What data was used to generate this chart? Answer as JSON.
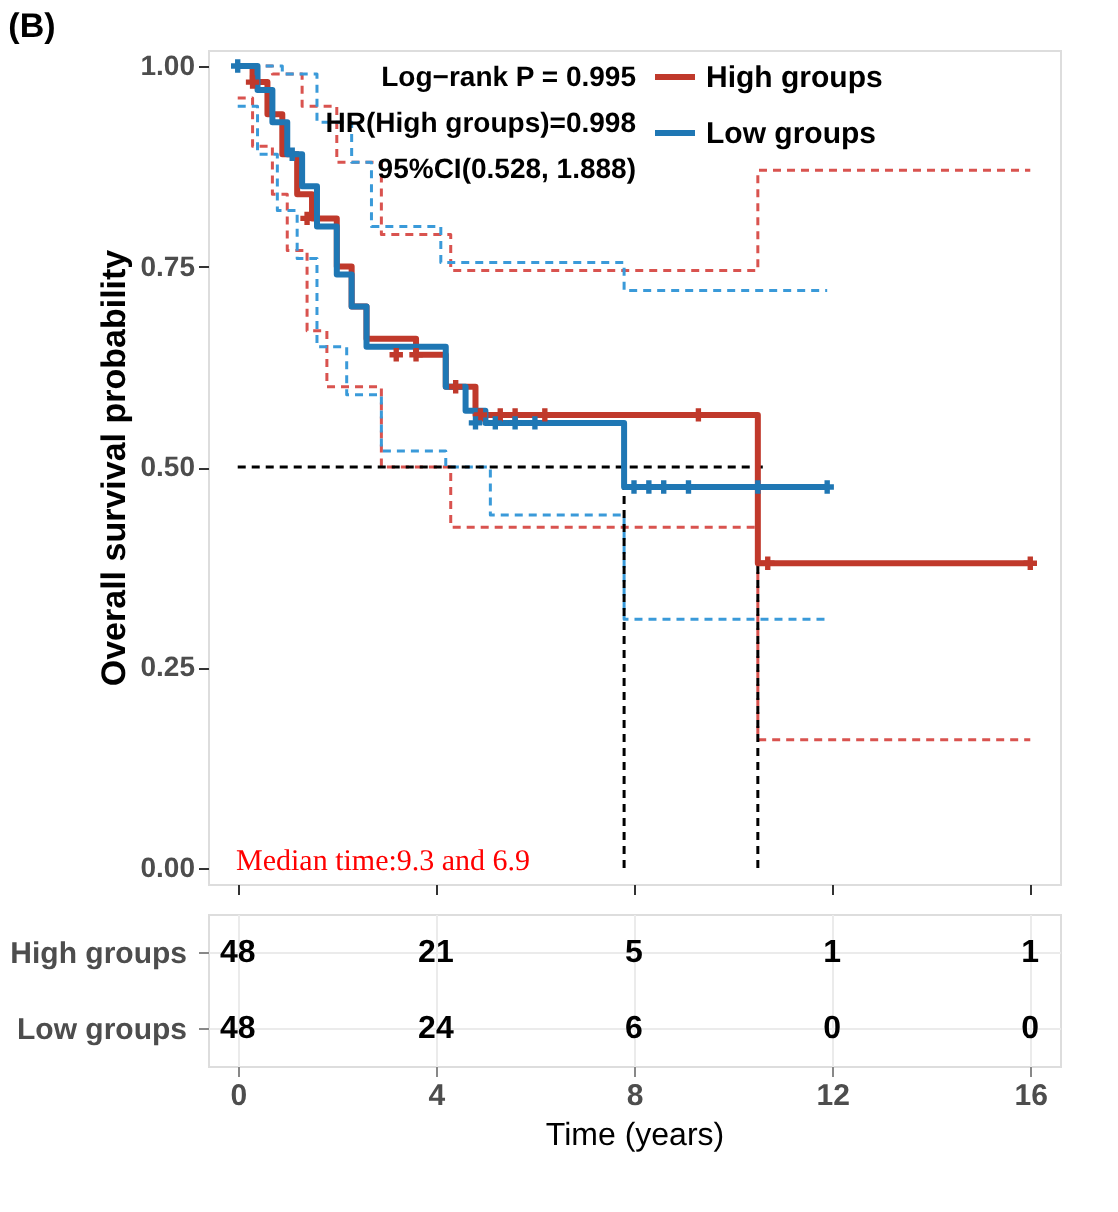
{
  "chart_data": [
    {
      "type": "step",
      "title": "(B)",
      "ylabel": "Overall survival probability",
      "xlim": [
        -0.6,
        16.6
      ],
      "xticks": [
        0,
        4,
        8,
        12,
        16
      ],
      "ylim": [
        -0.02,
        1.02
      ],
      "yticks": [
        {
          "value": 0,
          "label": "0.00"
        },
        {
          "value": 0.25,
          "label": "0.25"
        },
        {
          "value": 0.5,
          "label": "0.50"
        },
        {
          "value": 0.75,
          "label": "0.75"
        },
        {
          "value": 1,
          "label": "1.00"
        }
      ],
      "tick_labels": "y",
      "grid": false,
      "legend": "top right",
      "annotations": [
        "Log−rank P = 0.995",
        "HR(High groups)=0.998",
        "95%CI(0.528, 1.888)",
        "Median time:9.3 and 6.9"
      ],
      "series": [
        {
          "type": "step",
          "line_style": "dashed",
          "color": "#d9534f",
          "x": [
            0,
            0.7,
            1.3,
            2.0,
            2.9,
            4.3,
            10.5,
            16
          ],
          "values": [
            1,
            0.99,
            0.95,
            0.88,
            0.79,
            0.745,
            0.87,
            0.87
          ]
        },
        {
          "type": "step",
          "line_style": "dashed",
          "color": "#d9534f",
          "x": [
            0,
            0.3,
            0.7,
            1.0,
            1.4,
            1.8,
            2.9,
            4.3,
            10.5,
            16
          ],
          "values": [
            0.96,
            0.9,
            0.84,
            0.77,
            0.67,
            0.6,
            0.5,
            0.425,
            0.16,
            0.16
          ]
        },
        {
          "type": "step",
          "line_style": "dashed",
          "color": "#3a9ad9",
          "x": [
            0,
            0.9,
            1.6,
            2.3,
            2.7,
            4.1,
            7.8,
            11.9
          ],
          "values": [
            1,
            0.99,
            0.93,
            0.88,
            0.8,
            0.755,
            0.72,
            0.72
          ]
        },
        {
          "type": "step",
          "line_style": "dashed",
          "color": "#3a9ad9",
          "x": [
            0,
            0.4,
            0.8,
            1.2,
            1.6,
            2.2,
            2.9,
            4.2,
            5.1,
            7.8,
            11.9
          ],
          "values": [
            0.95,
            0.89,
            0.82,
            0.76,
            0.65,
            0.59,
            0.52,
            0.5,
            0.44,
            0.31,
            0.31
          ]
        },
        {
          "type": "line",
          "line_style": "dashed",
          "color": "#000000",
          "x": [
            0,
            10.6
          ],
          "values": [
            0.5,
            0.5
          ]
        },
        {
          "type": "line",
          "line_style": "dashed",
          "color": "#000000",
          "x": [
            7.8,
            7.8
          ],
          "values": [
            0,
            0.5
          ]
        },
        {
          "type": "line",
          "line_style": "dashed",
          "color": "#000000",
          "x": [
            10.5,
            10.5
          ],
          "values": [
            0,
            0.5
          ]
        },
        {
          "type": "step",
          "name": "High groups",
          "color": "#c0392b",
          "x": [
            0,
            0.3,
            0.6,
            0.9,
            1.2,
            1.5,
            2.0,
            2.3,
            2.6,
            3.6,
            4.2,
            4.8,
            10.5,
            16
          ],
          "values": [
            1,
            0.98,
            0.94,
            0.89,
            0.84,
            0.81,
            0.75,
            0.7,
            0.66,
            0.64,
            0.6,
            0.565,
            0.38,
            0.38
          ]
        },
        {
          "type": "step",
          "name": "Low groups",
          "color": "#1f77b4",
          "x": [
            0,
            0.4,
            0.7,
            1.0,
            1.3,
            1.6,
            2.0,
            2.3,
            2.6,
            4.2,
            4.6,
            5.0,
            7.8,
            11.9
          ],
          "values": [
            1,
            0.97,
            0.93,
            0.89,
            0.85,
            0.8,
            0.74,
            0.7,
            0.65,
            0.6,
            0.57,
            0.555,
            0.475,
            0.475
          ]
        },
        {
          "type": "scatter",
          "marker": "cross",
          "color": "#c0392b",
          "x": [
            0.3,
            1.4,
            3.2,
            3.6,
            4.4,
            4.9,
            5.3,
            5.6,
            6.2,
            9.3,
            10.7,
            16
          ],
          "values": [
            0.98,
            0.81,
            0.64,
            0.64,
            0.6,
            0.565,
            0.565,
            0.565,
            0.565,
            0.565,
            0.38,
            0.38
          ]
        },
        {
          "type": "scatter",
          "marker": "cross",
          "color": "#1f77b4",
          "x": [
            0,
            1.1,
            4.8,
            5.2,
            5.6,
            6.0,
            8.0,
            8.3,
            8.6,
            9.1,
            10.5,
            11.9
          ],
          "values": [
            1,
            0.89,
            0.555,
            0.555,
            0.555,
            0.555,
            0.475,
            0.475,
            0.475,
            0.475,
            0.475,
            0.475
          ]
        }
      ]
    },
    {
      "type": "heatmap",
      "xlabel": "Time (years)",
      "x": [
        0,
        4,
        8,
        12,
        16
      ],
      "xlim": [
        -0.6,
        16.6
      ],
      "xticks": [
        0,
        4,
        8,
        12,
        16
      ],
      "y_categories": [
        "High groups",
        "Low groups"
      ],
      "cells": [
        [
          48,
          21,
          5,
          1,
          1
        ],
        [
          48,
          24,
          6,
          0,
          0
        ]
      ],
      "data_labels": true,
      "grid": true
    }
  ]
}
